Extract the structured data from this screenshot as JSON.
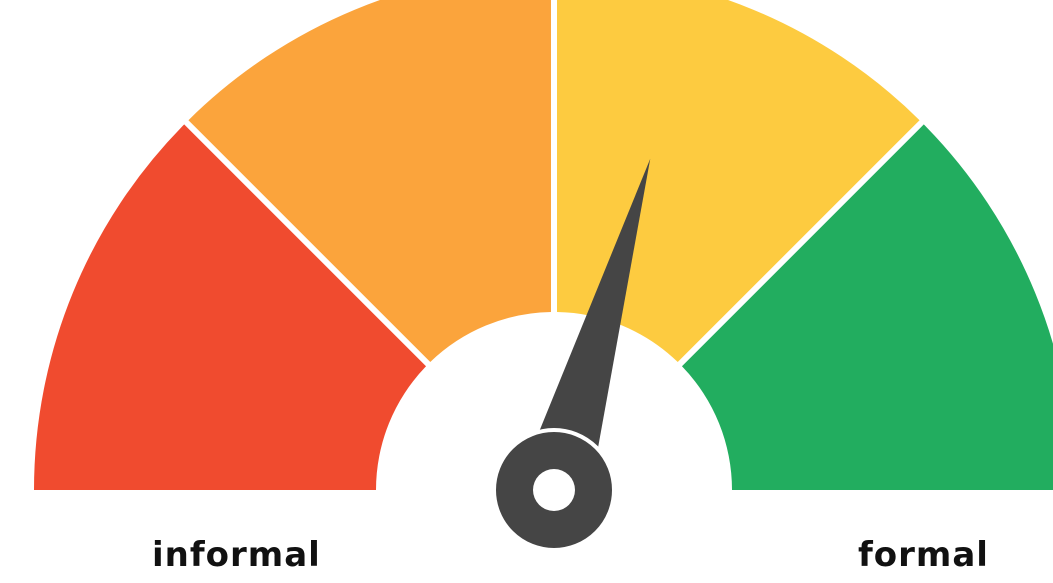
{
  "gauge": {
    "labels": {
      "left": "informal",
      "right": "formal"
    },
    "needle_level_percent": 59,
    "segments": [
      {
        "color": "#F04B2F"
      },
      {
        "color": "#FBA43C"
      },
      {
        "color": "#FDCB40"
      },
      {
        "color": "#22AD5F"
      }
    ],
    "colors": {
      "needle": "#454545",
      "background": "#FFFFFF",
      "separator": "#FFFFFF"
    }
  }
}
